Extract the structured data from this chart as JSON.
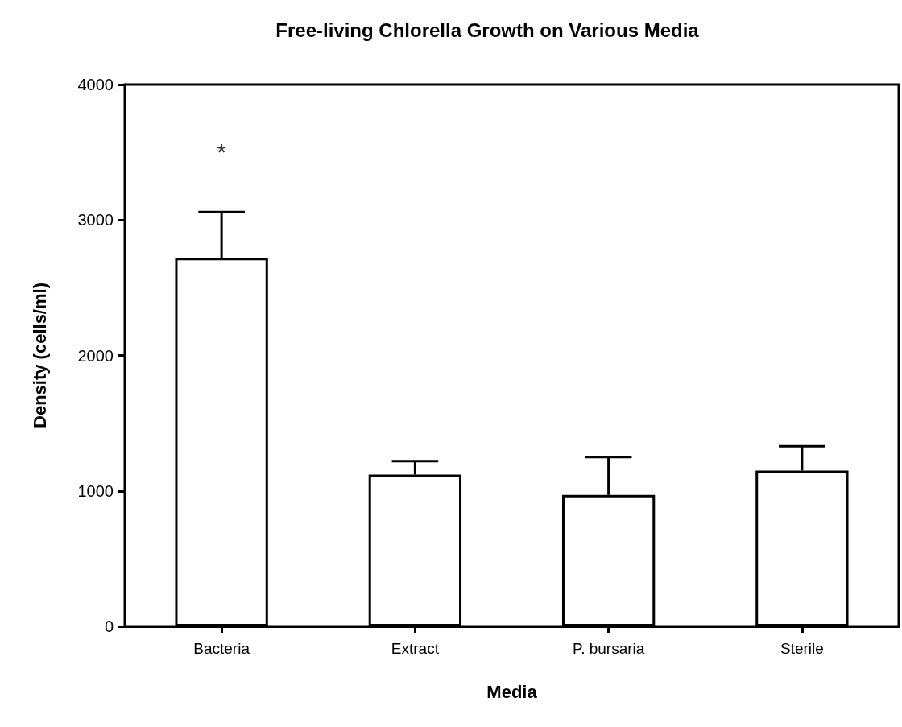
{
  "chart_data": {
    "type": "bar",
    "title": "Free-living Chlorella Growth on Various Media",
    "xlabel": "Media",
    "ylabel": "Density (cells/ml)",
    "categories": [
      "Bacteria",
      "Extract",
      "P. bursaria",
      "Sterile"
    ],
    "values": [
      2720,
      1120,
      970,
      1150
    ],
    "color": "#ffffff",
    "errors": [
      [
        2720,
        3060
      ],
      [
        1120,
        1220
      ],
      [
        970,
        1250
      ],
      [
        1150,
        1330
      ]
    ],
    "ylim": [
      0,
      4000
    ],
    "yticks": [
      0,
      1000,
      2000,
      3000,
      4000
    ],
    "grid": false,
    "annotations": [
      "*"
    ]
  }
}
